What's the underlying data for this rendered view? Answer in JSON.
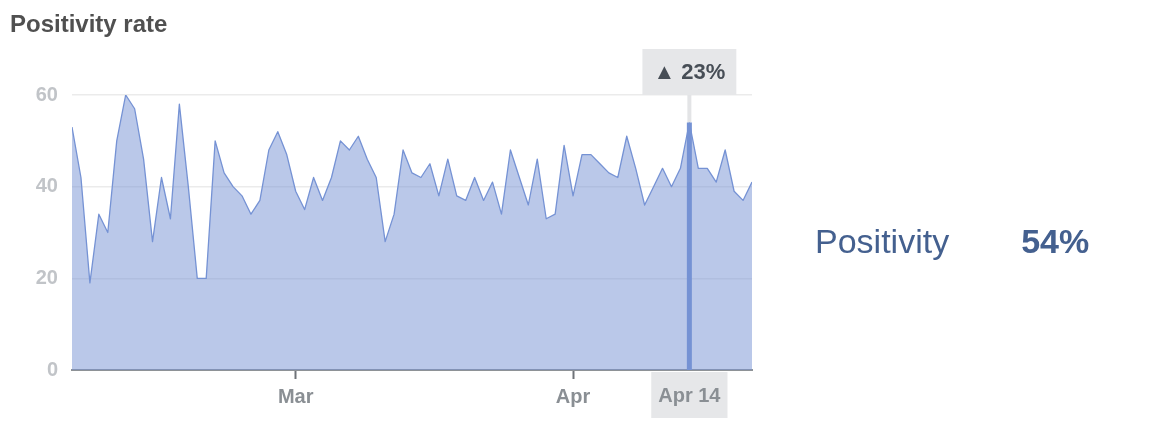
{
  "chart_data": {
    "type": "area",
    "title": "Positivity rate",
    "x": [
      "--02-05",
      "--02-06",
      "--02-07",
      "--02-08",
      "--02-09",
      "--02-10",
      "--02-11",
      "--02-12",
      "--02-13",
      "--02-14",
      "--02-15",
      "--02-16",
      "--02-17",
      "--02-18",
      "--02-19",
      "--02-20",
      "--02-21",
      "--02-22",
      "--02-23",
      "--02-24",
      "--02-25",
      "--02-26",
      "--02-27",
      "--02-28",
      "--02-29",
      "--03-01",
      "--03-02",
      "--03-03",
      "--03-04",
      "--03-05",
      "--03-06",
      "--03-07",
      "--03-08",
      "--03-09",
      "--03-10",
      "--03-11",
      "--03-12",
      "--03-13",
      "--03-14",
      "--03-15",
      "--03-16",
      "--03-17",
      "--03-18",
      "--03-19",
      "--03-20",
      "--03-21",
      "--03-22",
      "--03-23",
      "--03-24",
      "--03-25",
      "--03-26",
      "--03-27",
      "--03-28",
      "--03-29",
      "--03-30",
      "--03-31",
      "--04-01",
      "--04-02",
      "--04-03",
      "--04-04",
      "--04-05",
      "--04-06",
      "--04-07",
      "--04-08",
      "--04-09",
      "--04-10",
      "--04-11",
      "--04-12",
      "--04-13",
      "--04-14",
      "--04-15",
      "--04-16",
      "--04-17",
      "--04-18",
      "--04-19",
      "--04-20",
      "--04-21"
    ],
    "series": [
      {
        "name": "Positivity",
        "color": "#7592d4",
        "values": [
          53,
          42,
          19,
          34,
          30,
          50,
          60,
          57,
          46,
          28,
          42,
          33,
          58,
          40,
          20,
          20,
          50,
          43,
          40,
          38,
          34,
          37,
          48,
          52,
          47,
          39,
          35,
          42,
          37,
          42,
          50,
          48,
          51,
          46,
          42,
          28,
          34,
          48,
          43,
          42,
          45,
          38,
          46,
          38,
          37,
          42,
          37,
          41,
          34,
          48,
          42,
          36,
          46,
          33,
          34,
          49,
          38,
          47,
          47,
          45,
          43,
          42,
          51,
          44,
          36,
          40,
          44,
          40,
          44,
          54,
          44,
          44,
          41,
          48,
          39,
          37,
          41
        ]
      }
    ],
    "xlim": [
      "--02-05",
      "--04-21"
    ],
    "xticks": [
      {
        "value": "--03-01",
        "label": "Mar"
      },
      {
        "value": "--04-01",
        "label": "Apr"
      }
    ],
    "ylim": [
      0,
      60
    ],
    "yticks": [
      0,
      20,
      40,
      60
    ],
    "grid": "y",
    "legend": "right",
    "ref_lines": [
      {
        "axis": "x",
        "value": "--04-14",
        "label": "Apr 14",
        "color": "#7592d4"
      }
    ],
    "annotations": [
      {
        "text": "▲ 23%",
        "x": "--04-14"
      },
      "54%"
    ]
  }
}
